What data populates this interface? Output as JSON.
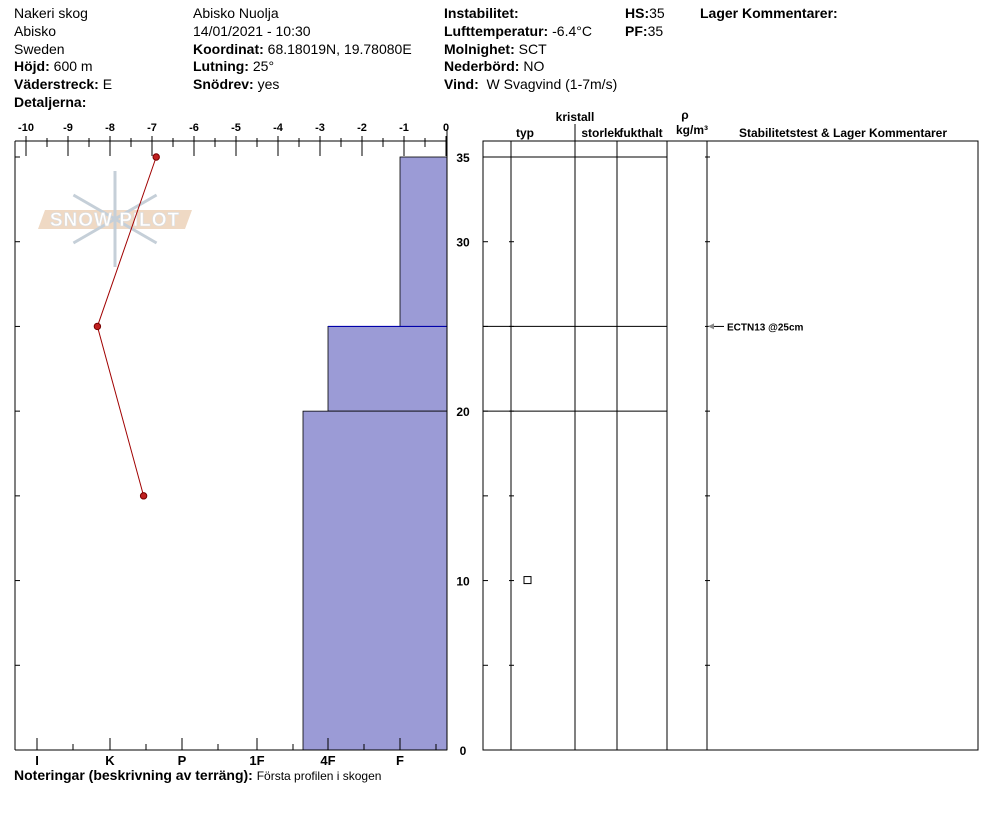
{
  "header": {
    "col1": [
      "Nakeri skog",
      "Abisko",
      "Sweden"
    ],
    "hojd_label": "Höjd:",
    "hojd": "600 m",
    "vaderstreck_label": "Väderstreck:",
    "vaderstreck": "E",
    "detaljerna_label": "Detaljerna:",
    "location": "Abisko Nuolja",
    "datetime": "14/01/2021 - 10:30",
    "koordinat_label": "Koordinat:",
    "koordinat": "68.18019N, 19.78080E",
    "lutning_label": "Lutning:",
    "lutning": "25°",
    "snodrev_label": "Snödrev:",
    "snodrev": "yes",
    "instabilitet_label": "Instabilitet:",
    "lufttemp_label": "Lufttemperatur:",
    "lufttemp": "-6.4°C",
    "molnighet_label": "Molnighet:",
    "molnighet": "SCT",
    "nederbord_label": "Nederbörd:",
    "nederbord": "NO",
    "vind_label": "Vind:",
    "vind": "W Svagvind (1-7m/s)",
    "hs_label": "HS:",
    "hs": "35",
    "pf_label": "PF:",
    "pf": "35",
    "lager_label": "Lager Kommentarer:"
  },
  "logo": "SNOW PILOT",
  "footer": {
    "label": "Noteringar (beskrivning av terräng):",
    "value": "Första profilen i skogen"
  },
  "colors": {
    "hardness_fill": "#9b9bd6",
    "temp_line": "#a00000",
    "temp_point": "#c02020"
  },
  "table_headers": {
    "kristall": "kristall",
    "typ": "typ",
    "storlek": "storlek",
    "fukthalt": "fukthalt",
    "rho": "ρ",
    "density_unit": "kg/m³",
    "comments": "Stabilitetstest & Lager Kommentarer"
  },
  "chart_data": {
    "type": "snow-profile",
    "temperature_axis": {
      "ticks": [
        "-10",
        "-9",
        "-8",
        "-7",
        "-6",
        "-5",
        "-4",
        "-3",
        "-2",
        "-1",
        "0"
      ],
      "range": [
        -10,
        0
      ]
    },
    "hardness_axis": {
      "ticks": [
        "I",
        "K",
        "P",
        "1F",
        "4F",
        "F"
      ]
    },
    "depth_axis": {
      "ticks": [
        "35",
        "30",
        "20",
        "10",
        "0"
      ],
      "range": [
        0,
        35
      ],
      "unit": "cm"
    },
    "temperature_profile": [
      {
        "depth": 35,
        "temp": -6.9
      },
      {
        "depth": 25,
        "temp": -8.3
      },
      {
        "depth": 15,
        "temp": -7.2
      }
    ],
    "layers": [
      {
        "top": 35,
        "bottom": 25,
        "hardness": "F"
      },
      {
        "top": 25,
        "bottom": 20,
        "hardness": "4F"
      },
      {
        "top": 20,
        "bottom": 0,
        "hardness": "4F+"
      }
    ],
    "layer_boundaries": [
      35,
      25,
      20
    ],
    "grain_marker_depth": 10,
    "stability_tests": [
      {
        "depth": 25,
        "label": "ECTN13 @25cm"
      }
    ]
  }
}
